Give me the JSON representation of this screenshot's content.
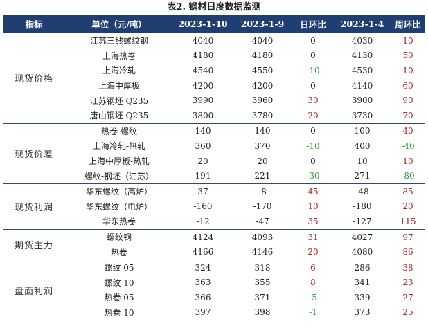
{
  "title": "表2. 钢材日度数据监测",
  "headers": [
    "指标",
    "单位（元/吨）",
    "2023-1-10",
    "2023-1-9",
    "日环比",
    "2023-1-4",
    "周环比"
  ],
  "groups": [
    {
      "name": "现货价格",
      "rows": [
        {
          "label": "江苏三线螺纹钢",
          "v1": "4040",
          "v2": "4040",
          "dod": "0",
          "dod_color": "black",
          "v3": "4030",
          "wow": "10",
          "wow_color": "red"
        },
        {
          "label": "上海热卷",
          "v1": "4180",
          "v2": "4180",
          "dod": "0",
          "dod_color": "black",
          "v3": "4130",
          "wow": "50",
          "wow_color": "red"
        },
        {
          "label": "上海冷轧",
          "v1": "4540",
          "v2": "4550",
          "dod": "-10",
          "dod_color": "green",
          "v3": "4530",
          "wow": "10",
          "wow_color": "red"
        },
        {
          "label": "上海中厚板",
          "v1": "4200",
          "v2": "4200",
          "dod": "0",
          "dod_color": "black",
          "v3": "4140",
          "wow": "60",
          "wow_color": "red"
        },
        {
          "label": "江苏钢坯 Q235",
          "v1": "3990",
          "v2": "3960",
          "dod": "30",
          "dod_color": "red",
          "v3": "3900",
          "wow": "90",
          "wow_color": "red"
        },
        {
          "label": "唐山钢坯 Q235",
          "v1": "3800",
          "v2": "3780",
          "dod": "20",
          "dod_color": "red",
          "v3": "3730",
          "wow": "70",
          "wow_color": "red"
        }
      ]
    },
    {
      "name": "现货价差",
      "rows": [
        {
          "label": "热卷-螺纹",
          "v1": "140",
          "v2": "140",
          "dod": "0",
          "dod_color": "black",
          "v3": "100",
          "wow": "40",
          "wow_color": "red"
        },
        {
          "label": "上海冷轧-热轧",
          "v1": "360",
          "v2": "370",
          "dod": "-10",
          "dod_color": "green",
          "v3": "400",
          "wow": "-40",
          "wow_color": "green"
        },
        {
          "label": "上海中厚板-热轧",
          "v1": "20",
          "v2": "20",
          "dod": "0",
          "dod_color": "black",
          "v3": "10",
          "wow": "10",
          "wow_color": "red"
        },
        {
          "label": "螺纹-钢坯（江苏）",
          "v1": "191",
          "v2": "221",
          "dod": "-30",
          "dod_color": "green",
          "v3": "271",
          "wow": "-80",
          "wow_color": "green"
        }
      ]
    },
    {
      "name": "现货利润",
      "rows": [
        {
          "label": "华东螺纹（高炉）",
          "v1": "37",
          "v2": "-8",
          "dod": "45",
          "dod_color": "red",
          "v3": "-48",
          "wow": "85",
          "wow_color": "red"
        },
        {
          "label": "华东螺纹（电炉）",
          "v1": "-160",
          "v2": "-170",
          "dod": "10",
          "dod_color": "red",
          "v3": "-180",
          "wow": "20",
          "wow_color": "red"
        },
        {
          "label": "华东热卷",
          "v1": "-12",
          "v2": "-47",
          "dod": "35",
          "dod_color": "red",
          "v3": "-127",
          "wow": "115",
          "wow_color": "red"
        }
      ]
    },
    {
      "name": "期货主力",
      "rows": [
        {
          "label": "螺纹钢",
          "v1": "4124",
          "v2": "4093",
          "dod": "31",
          "dod_color": "red",
          "v3": "4027",
          "wow": "97",
          "wow_color": "red"
        },
        {
          "label": "热卷",
          "v1": "4166",
          "v2": "4146",
          "dod": "20",
          "dod_color": "red",
          "v3": "4080",
          "wow": "86",
          "wow_color": "red"
        }
      ]
    },
    {
      "name": "盘面利润",
      "rows": [
        {
          "label": "螺纹 05",
          "v1": "324",
          "v2": "318",
          "dod": "6",
          "dod_color": "red",
          "v3": "286",
          "wow": "38",
          "wow_color": "red"
        },
        {
          "label": "螺纹 10",
          "v1": "363",
          "v2": "355",
          "dod": "8",
          "dod_color": "red",
          "v3": "341",
          "wow": "23",
          "wow_color": "red"
        },
        {
          "label": "热卷 05",
          "v1": "366",
          "v2": "371",
          "dod": "-5",
          "dod_color": "green",
          "v3": "339",
          "wow": "27",
          "wow_color": "red"
        },
        {
          "label": "热卷 10",
          "v1": "397",
          "v2": "398",
          "dod": "-1",
          "dod_color": "green",
          "v3": "373",
          "wow": "25",
          "wow_color": "red"
        }
      ]
    }
  ],
  "colors": {
    "header_bg": "#1f3f73",
    "positive": "#b22222",
    "negative": "#22a033",
    "neutral": "#222222"
  }
}
